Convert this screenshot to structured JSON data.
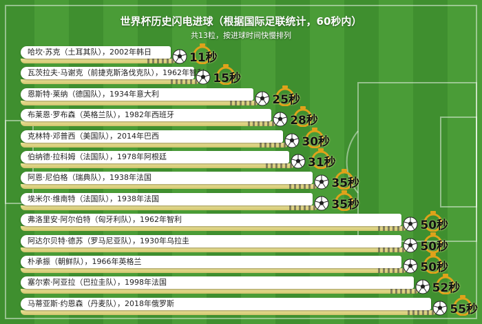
{
  "header": {
    "title": "世界杯历史闪电进球（根据国际足联统计，60秒内）",
    "subtitle": "共13粒，按进球时间快慢排列"
  },
  "chart_data": {
    "type": "bar",
    "title": "世界杯历史闪电进球（根据国际足联统计，60秒内）",
    "subtitle": "共13粒，按进球时间快慢排列",
    "unit": "秒",
    "xlim": [
      0,
      60
    ],
    "categories": [
      "哈坎·苏克（土耳其队），2002年韩日",
      "瓦茨拉夫·马谢克（前捷克斯洛伐克队），1962年智利",
      "恩斯特·莱纳（德国队），1934年意大利",
      "布莱恩·罗布森（英格兰队），1982年西班牙",
      "克林特·邓普西（美国队），2014年巴西",
      "伯纳德·拉科姆（法国队），1978年阿根廷",
      "阿恩·尼伯格（瑞典队），1938年法国",
      "埃米尔·维南特（法国队），1938年法国",
      "弗洛里安·阿尔伯特（匈牙利队），1962年智利",
      "阿达尔贝特·德苏（罗马尼亚队），1930年乌拉圭",
      "朴承振（朝鲜队），1966年英格兰",
      "塞尔索·阿亚拉（巴拉圭队），1998年法国",
      "马蒂亚斯·约恩森（丹麦队），2018年俄罗斯"
    ],
    "values": [
      11,
      15,
      25,
      28,
      30,
      31,
      35,
      35,
      50,
      50,
      50,
      52,
      55
    ],
    "value_labels": [
      "11秒",
      "15秒",
      "25秒",
      "28秒",
      "30秒",
      "31秒",
      "35秒",
      "35秒",
      "50秒",
      "50秒",
      "50秒",
      "52秒",
      "55秒"
    ]
  },
  "colors": {
    "trail": "#e9df8c",
    "label_bg": "#ffffff",
    "timer": "#e0a21a"
  },
  "icons": [
    "soccer-ball-icon",
    "stopwatch-icon"
  ]
}
